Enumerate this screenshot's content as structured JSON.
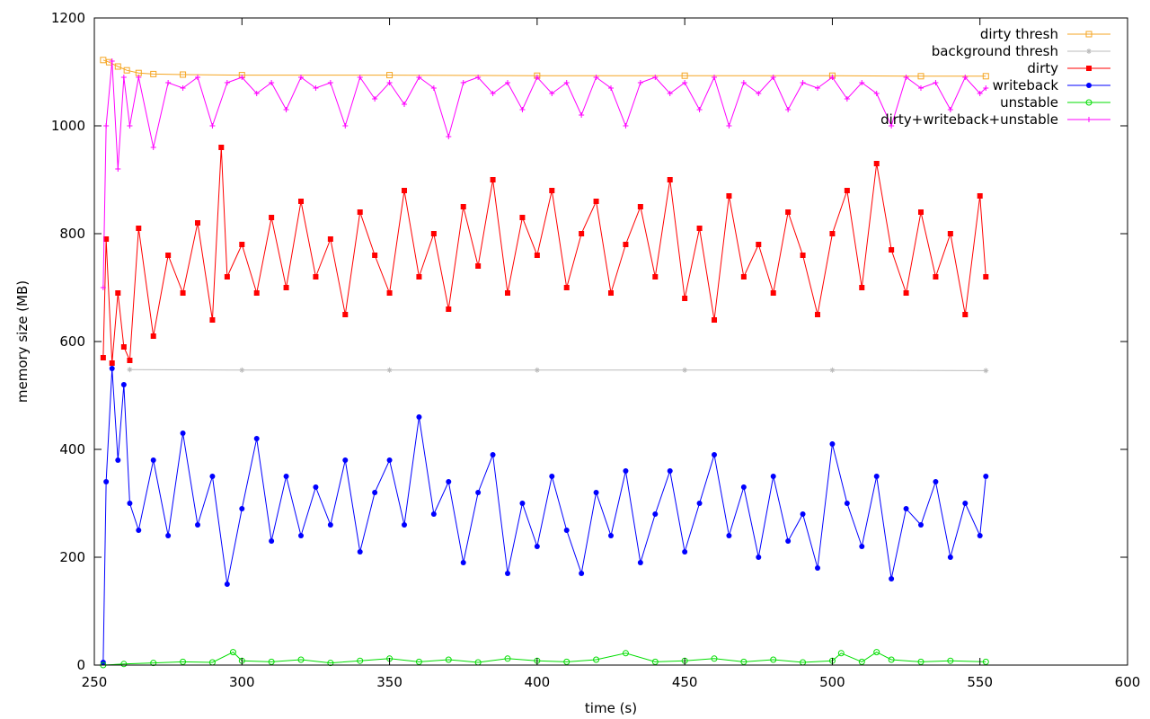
{
  "chart_data": {
    "type": "line",
    "title": "",
    "xlabel": "time (s)",
    "ylabel": "memory size (MB)",
    "xlim": [
      250,
      600
    ],
    "ylim": [
      0,
      1200
    ],
    "xticks": [
      250,
      300,
      350,
      400,
      450,
      500,
      550,
      600
    ],
    "yticks": [
      0,
      200,
      400,
      600,
      800,
      1000,
      1200
    ],
    "xtick_labels": [
      "250",
      "300",
      "350",
      "400",
      "450",
      "500",
      "550",
      "600"
    ],
    "ytick_labels": [
      "0",
      "200",
      "400",
      "600",
      "800",
      "1000",
      "1200"
    ],
    "grid": false,
    "legend_position": "top-right",
    "series": [
      {
        "name": "dirty thresh",
        "color": "#f5a623",
        "marker": "square-open",
        "x": [
          253,
          255,
          258,
          261,
          265,
          270,
          280,
          300,
          350,
          400,
          450,
          500,
          530,
          552
        ],
        "y": [
          1122,
          1118,
          1110,
          1103,
          1098,
          1096,
          1095,
          1094,
          1094,
          1093,
          1093,
          1093,
          1092,
          1092
        ]
      },
      {
        "name": "background thresh",
        "color": "#bbbbbb",
        "marker": "star",
        "x": [
          262,
          300,
          350,
          400,
          450,
          500,
          552
        ],
        "y": [
          548,
          547,
          547,
          547,
          547,
          547,
          546
        ]
      },
      {
        "name": "dirty",
        "color": "#ff0000",
        "marker": "square",
        "x": [
          253,
          254,
          256,
          258,
          260,
          262,
          265,
          270,
          275,
          280,
          285,
          290,
          293,
          295,
          300,
          305,
          310,
          315,
          320,
          325,
          330,
          335,
          340,
          345,
          350,
          355,
          360,
          365,
          370,
          375,
          380,
          385,
          390,
          395,
          400,
          405,
          410,
          415,
          420,
          425,
          430,
          435,
          440,
          445,
          450,
          455,
          460,
          465,
          470,
          475,
          480,
          485,
          490,
          495,
          500,
          505,
          510,
          515,
          520,
          525,
          530,
          535,
          540,
          545,
          550,
          552
        ],
        "y": [
          570,
          790,
          560,
          690,
          590,
          565,
          810,
          610,
          760,
          690,
          820,
          640,
          960,
          720,
          780,
          690,
          830,
          700,
          860,
          720,
          790,
          650,
          840,
          760,
          690,
          880,
          720,
          800,
          660,
          850,
          740,
          900,
          690,
          830,
          760,
          880,
          700,
          800,
          860,
          690,
          780,
          850,
          720,
          900,
          680,
          810,
          640,
          870,
          720,
          780,
          690,
          840,
          760,
          650,
          800,
          880,
          700,
          930,
          770,
          690,
          840,
          720,
          800,
          650,
          870,
          720
        ]
      },
      {
        "name": "writeback",
        "color": "#0000ff",
        "marker": "circle",
        "x": [
          253,
          254,
          256,
          258,
          260,
          262,
          265,
          270,
          275,
          280,
          285,
          290,
          295,
          300,
          305,
          310,
          315,
          320,
          325,
          330,
          335,
          340,
          345,
          350,
          355,
          360,
          365,
          370,
          375,
          380,
          385,
          390,
          395,
          400,
          405,
          410,
          415,
          420,
          425,
          430,
          435,
          440,
          445,
          450,
          455,
          460,
          465,
          470,
          475,
          480,
          485,
          490,
          495,
          500,
          505,
          510,
          515,
          520,
          525,
          530,
          535,
          540,
          545,
          550,
          552
        ],
        "y": [
          5,
          340,
          550,
          380,
          520,
          300,
          250,
          380,
          240,
          430,
          260,
          350,
          150,
          290,
          420,
          230,
          350,
          240,
          330,
          260,
          380,
          210,
          320,
          380,
          260,
          460,
          280,
          340,
          190,
          320,
          390,
          170,
          300,
          220,
          350,
          250,
          170,
          320,
          240,
          360,
          190,
          280,
          360,
          210,
          300,
          390,
          240,
          330,
          200,
          350,
          230,
          280,
          180,
          410,
          300,
          220,
          350,
          160,
          290,
          260,
          340,
          200,
          300,
          240,
          350
        ]
      },
      {
        "name": "unstable",
        "color": "#00dd00",
        "marker": "circle-open",
        "x": [
          253,
          260,
          270,
          280,
          290,
          297,
          300,
          310,
          320,
          330,
          340,
          350,
          360,
          370,
          380,
          390,
          400,
          410,
          420,
          430,
          440,
          450,
          460,
          470,
          480,
          490,
          500,
          503,
          510,
          515,
          520,
          530,
          540,
          552
        ],
        "y": [
          0,
          2,
          4,
          6,
          5,
          24,
          8,
          6,
          10,
          4,
          8,
          12,
          6,
          10,
          5,
          12,
          8,
          6,
          10,
          22,
          6,
          8,
          12,
          6,
          10,
          5,
          8,
          22,
          6,
          24,
          10,
          6,
          8,
          6
        ]
      },
      {
        "name": "dirty+writeback+unstable",
        "color": "#ff00ff",
        "marker": "plus",
        "x": [
          253,
          254,
          256,
          258,
          260,
          262,
          265,
          270,
          275,
          280,
          285,
          290,
          295,
          300,
          305,
          310,
          315,
          320,
          325,
          330,
          335,
          340,
          345,
          350,
          355,
          360,
          365,
          370,
          375,
          380,
          385,
          390,
          395,
          400,
          405,
          410,
          415,
          420,
          425,
          430,
          435,
          440,
          445,
          450,
          455,
          460,
          465,
          470,
          475,
          480,
          485,
          490,
          495,
          500,
          505,
          510,
          515,
          520,
          525,
          530,
          535,
          540,
          545,
          550,
          552
        ],
        "y": [
          700,
          1000,
          1120,
          920,
          1090,
          1000,
          1090,
          960,
          1080,
          1070,
          1090,
          1000,
          1080,
          1090,
          1060,
          1080,
          1030,
          1090,
          1070,
          1080,
          1000,
          1090,
          1050,
          1080,
          1040,
          1090,
          1070,
          980,
          1080,
          1090,
          1060,
          1080,
          1030,
          1090,
          1060,
          1080,
          1020,
          1090,
          1070,
          1000,
          1080,
          1090,
          1060,
          1080,
          1030,
          1090,
          1000,
          1080,
          1060,
          1090,
          1030,
          1080,
          1070,
          1090,
          1050,
          1080,
          1060,
          1000,
          1090,
          1070,
          1080,
          1030,
          1090,
          1060,
          1070
        ]
      }
    ]
  }
}
